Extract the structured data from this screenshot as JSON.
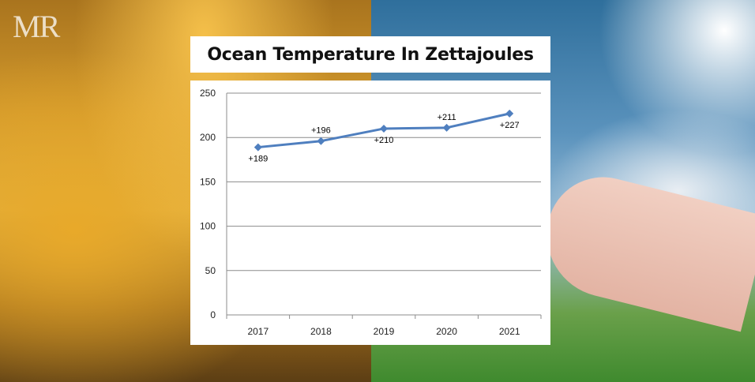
{
  "logo": {
    "text": "MR"
  },
  "chart_data": {
    "type": "line",
    "title": "Ocean Temperature In Zettajoules",
    "xlabel": "",
    "ylabel": "",
    "categories": [
      "2017",
      "2018",
      "2019",
      "2020",
      "2021"
    ],
    "series": [
      {
        "values": [
          189,
          196,
          210,
          211,
          227
        ],
        "color": "#4f7fbf"
      }
    ],
    "data_labels": [
      "+189",
      "+196",
      "+210",
      "+211",
      "+227"
    ],
    "ylim": [
      0,
      250
    ],
    "yticks": [
      0,
      50,
      100,
      150,
      200,
      250
    ],
    "grid": true,
    "legend": "none",
    "marker": "diamond"
  }
}
